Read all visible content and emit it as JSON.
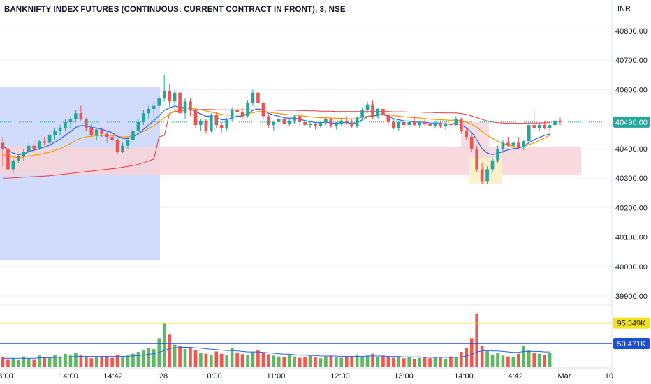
{
  "title": "BANKNIFTY INDEX FUTURES (CONTINUOUS: CURRENT CONTRACT IN FRONT), 3, NSE",
  "currency": "INR",
  "colors": {
    "up": "#26a69a",
    "down": "#ef5350",
    "vol_up": "#4caf50",
    "vol_down": "#f44336",
    "ema_fast": "#2962ff",
    "ema_slow": "#ff9800",
    "vwap": "#f23645",
    "blue_zone": "#d1dcfc",
    "red_zone": "#f9d3d8",
    "yellow_zone": "#fbf0c9",
    "pink_zone": "#f6d5dc",
    "level_yellow": "#f5e11b",
    "level_blue": "#1d4ed8",
    "price_badge": "#26a69a"
  },
  "price_axis": {
    "ticks": [
      "40800.00",
      "40700.00",
      "40600.00",
      "40500.00",
      "40400.00",
      "40300.00",
      "40200.00",
      "40100.00",
      "40000.00",
      "39900.00"
    ],
    "ylim": [
      39850,
      40900
    ]
  },
  "time_axis": {
    "labels": [
      "3:00",
      "14:00",
      "14:42",
      "28",
      "10:00",
      "11:00",
      "12:00",
      "13:00",
      "14:00",
      "14:42",
      "Mar",
      "10"
    ]
  },
  "last_price_label": "40490.00",
  "volume_levels": [
    {
      "label": "95.349K",
      "value": 95.349
    },
    {
      "label": "50.471K",
      "value": 50.471
    }
  ],
  "chart_data": {
    "type": "candlestick",
    "ylim": [
      39850,
      40900
    ],
    "volume_ylim": [
      0,
      130
    ],
    "last_price": 40490,
    "zones": [
      {
        "name": "blue",
        "y_from": 40020,
        "y_to": 40610
      },
      {
        "name": "red",
        "y_from": 40310,
        "y_to": 40405
      },
      {
        "name": "yellow",
        "y_from": 40280,
        "y_to": 40370
      },
      {
        "name": "pink",
        "y_from": 40400,
        "y_to": 40490
      }
    ],
    "candles": [
      [
        40420,
        40440,
        40340,
        40400
      ],
      [
        40400,
        40410,
        40320,
        40330
      ],
      [
        40330,
        40370,
        40315,
        40360
      ],
      [
        40360,
        40380,
        40350,
        40375
      ],
      [
        40375,
        40400,
        40360,
        40390
      ],
      [
        40390,
        40420,
        40380,
        40410
      ],
      [
        40410,
        40430,
        40395,
        40400
      ],
      [
        40400,
        40430,
        40395,
        40425
      ],
      [
        40425,
        40440,
        40410,
        40420
      ],
      [
        40420,
        40450,
        40415,
        40445
      ],
      [
        40445,
        40470,
        40430,
        40460
      ],
      [
        40460,
        40480,
        40445,
        40470
      ],
      [
        40470,
        40500,
        40460,
        40490
      ],
      [
        40490,
        40510,
        40470,
        40500
      ],
      [
        40500,
        40530,
        40490,
        40520
      ],
      [
        40520,
        40545,
        40495,
        40500
      ],
      [
        40500,
        40505,
        40460,
        40470
      ],
      [
        40470,
        40485,
        40440,
        40445
      ],
      [
        40445,
        40470,
        40430,
        40465
      ],
      [
        40465,
        40470,
        40440,
        40450
      ],
      [
        40450,
        40460,
        40420,
        40440
      ],
      [
        40440,
        40455,
        40420,
        40430
      ],
      [
        40430,
        40435,
        40380,
        40390
      ],
      [
        40390,
        40420,
        40385,
        40410
      ],
      [
        40410,
        40440,
        40400,
        40430
      ],
      [
        40430,
        40470,
        40420,
        40460
      ],
      [
        40460,
        40500,
        40450,
        40490
      ],
      [
        40490,
        40530,
        40480,
        40520
      ],
      [
        40520,
        40545,
        40500,
        40535
      ],
      [
        40535,
        40560,
        40510,
        40545
      ],
      [
        40545,
        40580,
        40540,
        40570
      ],
      [
        40570,
        40650,
        40560,
        40595
      ],
      [
        40595,
        40620,
        40540,
        40560
      ],
      [
        40560,
        40600,
        40530,
        40590
      ],
      [
        40590,
        40600,
        40510,
        40520
      ],
      [
        40520,
        40570,
        40500,
        40560
      ],
      [
        40560,
        40570,
        40510,
        40530
      ],
      [
        40530,
        40540,
        40470,
        40480
      ],
      [
        40480,
        40500,
        40460,
        40495
      ],
      [
        40495,
        40500,
        40450,
        40460
      ],
      [
        40460,
        40520,
        40455,
        40515
      ],
      [
        40515,
        40525,
        40470,
        40480
      ],
      [
        40480,
        40490,
        40455,
        40470
      ],
      [
        40470,
        40505,
        40460,
        40500
      ],
      [
        40500,
        40540,
        40490,
        40530
      ],
      [
        40530,
        40550,
        40510,
        40525
      ],
      [
        40525,
        40540,
        40500,
        40510
      ],
      [
        40510,
        40565,
        40505,
        40555
      ],
      [
        40555,
        40600,
        40545,
        40590
      ],
      [
        40590,
        40600,
        40540,
        40555
      ],
      [
        40555,
        40560,
        40500,
        40510
      ],
      [
        40510,
        40520,
        40470,
        40480
      ],
      [
        40480,
        40495,
        40460,
        40490
      ],
      [
        40490,
        40505,
        40470,
        40500
      ],
      [
        40500,
        40510,
        40480,
        40485
      ],
      [
        40485,
        40500,
        40475,
        40495
      ],
      [
        40495,
        40515,
        40485,
        40510
      ],
      [
        40510,
        40515,
        40480,
        40490
      ],
      [
        40490,
        40500,
        40470,
        40480
      ],
      [
        40480,
        40495,
        40470,
        40485
      ],
      [
        40485,
        40490,
        40465,
        40475
      ],
      [
        40475,
        40495,
        40470,
        40490
      ],
      [
        40490,
        40505,
        40480,
        40500
      ],
      [
        40500,
        40505,
        40470,
        40478
      ],
      [
        40478,
        40490,
        40465,
        40485
      ],
      [
        40485,
        40500,
        40475,
        40495
      ],
      [
        40495,
        40510,
        40480,
        40488
      ],
      [
        40488,
        40500,
        40470,
        40475
      ],
      [
        40475,
        40510,
        40470,
        40505
      ],
      [
        40505,
        40540,
        40495,
        40530
      ],
      [
        40530,
        40560,
        40520,
        40550
      ],
      [
        40550,
        40565,
        40500,
        40510
      ],
      [
        40510,
        40540,
        40500,
        40535
      ],
      [
        40535,
        40545,
        40505,
        40515
      ],
      [
        40515,
        40520,
        40480,
        40490
      ],
      [
        40490,
        40500,
        40465,
        40470
      ],
      [
        40470,
        40495,
        40460,
        40490
      ],
      [
        40490,
        40500,
        40470,
        40480
      ],
      [
        40480,
        40495,
        40470,
        40490
      ],
      [
        40490,
        40510,
        40475,
        40480
      ],
      [
        40480,
        40495,
        40470,
        40490
      ],
      [
        40490,
        40500,
        40475,
        40485
      ],
      [
        40485,
        40495,
        40470,
        40478
      ],
      [
        40478,
        40492,
        40468,
        40488
      ],
      [
        40488,
        40495,
        40470,
        40475
      ],
      [
        40475,
        40490,
        40465,
        40485
      ],
      [
        40485,
        40495,
        40470,
        40480
      ],
      [
        40480,
        40510,
        40475,
        40500
      ],
      [
        40500,
        40505,
        40450,
        40460
      ],
      [
        40460,
        40470,
        40430,
        40440
      ],
      [
        40440,
        40450,
        40390,
        40400
      ],
      [
        40400,
        40410,
        40320,
        40330
      ],
      [
        40330,
        40350,
        40280,
        40290
      ],
      [
        40290,
        40340,
        40280,
        40330
      ],
      [
        40330,
        40370,
        40320,
        40360
      ],
      [
        40360,
        40410,
        40350,
        40400
      ],
      [
        40400,
        40430,
        40385,
        40420
      ],
      [
        40420,
        40440,
        40405,
        40410
      ],
      [
        40410,
        40425,
        40395,
        40420
      ],
      [
        40420,
        40440,
        40400,
        40405
      ],
      [
        40405,
        40430,
        40395,
        40425
      ],
      [
        40425,
        40490,
        40420,
        40480
      ],
      [
        40480,
        40530,
        40460,
        40470
      ],
      [
        40470,
        40490,
        40460,
        40480
      ],
      [
        40480,
        40495,
        40465,
        40470
      ],
      [
        40470,
        40485,
        40460,
        40480
      ],
      [
        40480,
        40500,
        40470,
        40495
      ],
      [
        40495,
        40505,
        40480,
        40490
      ]
    ],
    "volumes": [
      20,
      16,
      18,
      14,
      22,
      18,
      16,
      24,
      20,
      19,
      25,
      22,
      28,
      24,
      30,
      26,
      21,
      18,
      22,
      20,
      23,
      19,
      26,
      21,
      24,
      28,
      32,
      35,
      40,
      38,
      62,
      95,
      70,
      48,
      45,
      38,
      42,
      36,
      30,
      28,
      26,
      33,
      28,
      25,
      40,
      30,
      27,
      26,
      32,
      35,
      30,
      27,
      24,
      22,
      20,
      25,
      22,
      19,
      21,
      23,
      20,
      18,
      22,
      24,
      21,
      19,
      20,
      23,
      25,
      22,
      24,
      28,
      21,
      24,
      20,
      19,
      22,
      18,
      20,
      17,
      19,
      21,
      18,
      20,
      19,
      17,
      22,
      20,
      32,
      40,
      62,
      115,
      45,
      34,
      26,
      30,
      24,
      22,
      20,
      28,
      45,
      35,
      30,
      28,
      25,
      30
    ],
    "ema_fast": [
      40410,
      40395,
      40385,
      40380,
      40382,
      40390,
      40395,
      40400,
      40405,
      40412,
      40422,
      40432,
      40445,
      40458,
      40472,
      40478,
      40478,
      40472,
      40470,
      40466,
      40460,
      40454,
      40442,
      40435,
      40434,
      40440,
      40450,
      40465,
      40480,
      40495,
      40512,
      40530,
      40538,
      40545,
      40540,
      40540,
      40536,
      40525,
      40518,
      40510,
      40510,
      40505,
      40498,
      40498,
      40505,
      40510,
      40510,
      40518,
      40530,
      40535,
      40530,
      40520,
      40514,
      40510,
      40505,
      40503,
      40504,
      40500,
      40495,
      40492,
      40488,
      40488,
      40490,
      40487,
      40486,
      40488,
      40488,
      40485,
      40488,
      40498,
      40508,
      40509,
      40515,
      40515,
      40510,
      40502,
      40498,
      40494,
      40493,
      40490,
      40490,
      40489,
      40487,
      40487,
      40484,
      40484,
      40483,
      40487,
      40480,
      40470,
      40455,
      40430,
      40400,
      40385,
      40380,
      40384,
      40390,
      40396,
      40400,
      40402,
      40407,
      40420,
      40430,
      40438,
      40445,
      40450
    ],
    "ema_slow": [
      40380,
      40375,
      40372,
      40370,
      40372,
      40375,
      40378,
      40380,
      40384,
      40388,
      40394,
      40400,
      40408,
      40418,
      40428,
      40435,
      40440,
      40442,
      40444,
      40445,
      40445,
      40444,
      40442,
      40440,
      40440,
      40444,
      40450,
      40458,
      40468,
      40478,
      40490,
      40505,
      40518,
      40528,
      40534,
      40538,
      40538,
      40534,
      40532,
      40528,
      40524,
      40520,
      40516,
      40514,
      40514,
      40515,
      40515,
      40518,
      40522,
      40526,
      40526,
      40524,
      40521,
      40519,
      40517,
      40515,
      40514,
      40512,
      40510,
      40508,
      40506,
      40505,
      40505,
      40504,
      40503,
      40503,
      40502,
      40501,
      40502,
      40506,
      40510,
      40512,
      40515,
      40516,
      40515,
      40512,
      40510,
      40508,
      40506,
      40505,
      40504,
      40502,
      40500,
      40499,
      40498,
      40497,
      40496,
      40497,
      40494,
      40490,
      40483,
      40472,
      40458,
      40445,
      40435,
      40425,
      40418,
      40412,
      40408,
      40405,
      40407,
      40414,
      40420,
      40428,
      40436,
      40445
    ],
    "vwap": [
      40300,
      40300,
      40301,
      40302,
      40303,
      40304,
      40305,
      40306,
      40307,
      40308,
      40310,
      40312,
      40314,
      40316,
      40318,
      40320,
      40322,
      40324,
      40326,
      40328,
      40330,
      40332,
      40334,
      40337,
      40340,
      40343,
      40347,
      40352,
      40358,
      40365,
      40440,
      40445,
      40520,
      40525,
      40528,
      40530,
      40532,
      40532,
      40533,
      40533,
      40533,
      40532,
      40532,
      40532,
      40532,
      40532,
      40532,
      40532,
      40532,
      40532,
      40532,
      40531,
      40531,
      40530,
      40530,
      40530,
      40530,
      40529,
      40529,
      40528,
      40528,
      40527,
      40527,
      40527,
      40526,
      40526,
      40526,
      40526,
      40526,
      40526,
      40526,
      40526,
      40526,
      40526,
      40526,
      40525,
      40525,
      40525,
      40524,
      40524,
      40524,
      40523,
      40523,
      40522,
      40522,
      40521,
      40521,
      40521,
      40519,
      40516,
      40511,
      40505,
      40499,
      40494,
      40490,
      40488,
      40487,
      40486,
      40486,
      40486,
      40486,
      40487,
      40487,
      40487,
      40488,
      40488
    ],
    "volume_ma": [
      18,
      18,
      18,
      18,
      18,
      18,
      18,
      19,
      19,
      19,
      20,
      20,
      21,
      21,
      22,
      22,
      22,
      22,
      22,
      22,
      22,
      22,
      22,
      22,
      23,
      23,
      24,
      25,
      27,
      28,
      31,
      35,
      39,
      41,
      42,
      42,
      42,
      41,
      40,
      39,
      38,
      37,
      36,
      35,
      35,
      34,
      33,
      32,
      32,
      32,
      31,
      30,
      29,
      28,
      27,
      27,
      26,
      25,
      25,
      24,
      24,
      23,
      23,
      23,
      23,
      22,
      22,
      22,
      22,
      22,
      23,
      23,
      23,
      23,
      22,
      22,
      22,
      21,
      21,
      21,
      21,
      20,
      20,
      20,
      20,
      20,
      20,
      20,
      21,
      23,
      26,
      32,
      34,
      35,
      34,
      34,
      33,
      32,
      31,
      31,
      33,
      33,
      33,
      33,
      32,
      32
    ]
  }
}
